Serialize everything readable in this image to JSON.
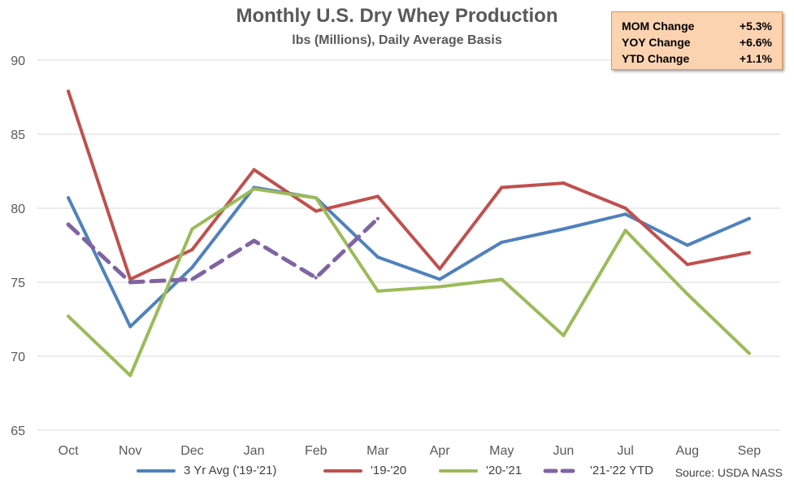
{
  "chart_data": {
    "type": "line",
    "title": "Monthly U.S. Dry Whey Production",
    "subtitle": "lbs (Millions), Daily Average Basis",
    "categories": [
      "Oct",
      "Nov",
      "Dec",
      "Jan",
      "Feb",
      "Mar",
      "Apr",
      "May",
      "Jun",
      "Jul",
      "Aug",
      "Sep"
    ],
    "ylim": [
      65,
      90
    ],
    "yticks": [
      65,
      70,
      75,
      80,
      85,
      90
    ],
    "grid": true,
    "legend_position": "bottom",
    "series": [
      {
        "name": "3 Yr Avg ('19-'21)",
        "color": "#4f81bd",
        "dashed": false,
        "values": [
          80.7,
          72.0,
          76.0,
          81.4,
          80.7,
          76.7,
          75.2,
          77.7,
          78.6,
          79.6,
          77.5,
          79.3
        ]
      },
      {
        "name": "'19-'20",
        "color": "#c0504d",
        "dashed": false,
        "values": [
          87.9,
          75.2,
          77.2,
          82.6,
          79.8,
          80.8,
          75.9,
          81.4,
          81.7,
          80.0,
          76.2,
          77.0
        ]
      },
      {
        "name": "'20-'21",
        "color": "#9bbb59",
        "dashed": false,
        "values": [
          72.7,
          68.7,
          78.6,
          81.3,
          80.7,
          74.4,
          74.7,
          75.2,
          71.4,
          78.5,
          74.2,
          70.2
        ]
      },
      {
        "name": "'21-'22 YTD",
        "color": "#8064a2",
        "dashed": true,
        "values": [
          78.9,
          75.0,
          75.2,
          77.8,
          75.3,
          79.3,
          null,
          null,
          null,
          null,
          null,
          null
        ]
      }
    ],
    "source": "Source: USDA NASS"
  },
  "stats": [
    {
      "label": "MOM Change",
      "value": "+5.3%"
    },
    {
      "label": "YOY Change",
      "value": "+6.6%"
    },
    {
      "label": "YTD Change",
      "value": "+1.1%"
    }
  ]
}
